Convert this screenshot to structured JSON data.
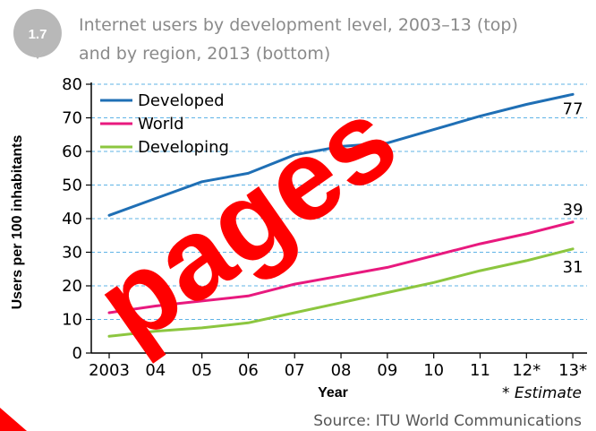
{
  "badge": "1.7",
  "title": {
    "line1": "Internet users by development level, 2003–13 (top)",
    "line2": "and by region, 2013 (bottom)"
  },
  "watermark": "pages",
  "source": "Source: ITU World Communications",
  "note": "* Estimate",
  "chart_data": {
    "type": "line",
    "xlabel": "Year",
    "ylabel": "Users per 100 inhabitants",
    "categories": [
      "2003",
      "04",
      "05",
      "06",
      "07",
      "08",
      "09",
      "10",
      "11",
      "12*",
      "13*"
    ],
    "ylim": [
      0,
      80
    ],
    "yticks": [
      "0",
      "10",
      "20",
      "30",
      "40",
      "50",
      "60",
      "70",
      "80"
    ],
    "grid": true,
    "legend_position": "top-left",
    "series": [
      {
        "name": "Developed",
        "color": "#1f6fb5",
        "values": [
          41,
          46,
          51,
          53.5,
          59,
          61.5,
          62.5,
          66.5,
          70.5,
          74,
          77
        ],
        "end_label": "77"
      },
      {
        "name": "World",
        "color": "#e8197e",
        "values": [
          12,
          14,
          15.5,
          17,
          20.5,
          23,
          25.5,
          29,
          32.5,
          35.5,
          39
        ],
        "end_label": "39"
      },
      {
        "name": "Developing",
        "color": "#8cc63f",
        "values": [
          5,
          6.5,
          7.5,
          9,
          12,
          15,
          18,
          21,
          24.5,
          27.5,
          31
        ],
        "end_label": "31"
      }
    ]
  }
}
